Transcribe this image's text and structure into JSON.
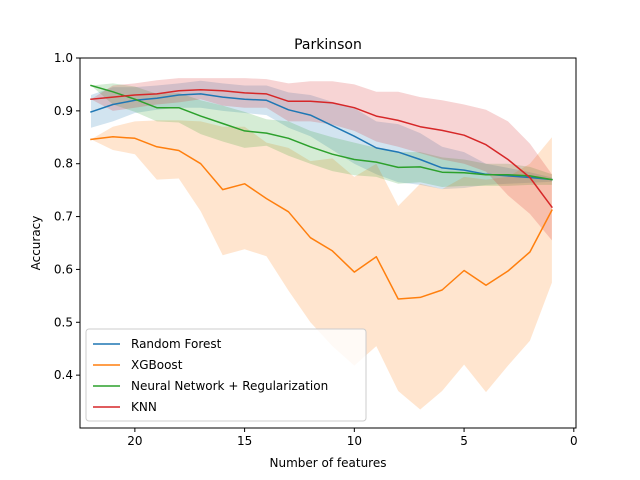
{
  "chart_data": {
    "type": "line",
    "title": "Parkinson",
    "xlabel": "Number of features",
    "ylabel": "Accuracy",
    "xlim": [
      22.5,
      -0.1
    ],
    "ylim": [
      0.3,
      1.0
    ],
    "x_inverted": true,
    "xticks": [
      20,
      15,
      10,
      5,
      0
    ],
    "yticks": [
      0.4,
      0.5,
      0.6,
      0.7,
      0.8,
      0.9,
      1.0
    ],
    "x": [
      22,
      21,
      20,
      19,
      18,
      17,
      16,
      15,
      14,
      13,
      12,
      11,
      10,
      9,
      8,
      7,
      6,
      5,
      4,
      3,
      2,
      1
    ],
    "legend_position": "lower-left",
    "grid": false,
    "series": [
      {
        "name": "Random Forest",
        "color": "#1f77b4",
        "values": [
          0.898,
          0.912,
          0.92,
          0.924,
          0.93,
          0.932,
          0.926,
          0.922,
          0.92,
          0.902,
          0.892,
          0.872,
          0.852,
          0.83,
          0.822,
          0.808,
          0.792,
          0.788,
          0.78,
          0.777,
          0.774,
          0.77
        ],
        "lower": [
          0.868,
          0.88,
          0.896,
          0.902,
          0.906,
          0.906,
          0.9,
          0.896,
          0.892,
          0.868,
          0.852,
          0.826,
          0.8,
          0.78,
          0.765,
          0.76,
          0.752,
          0.754,
          0.76,
          0.762,
          0.764,
          0.766
        ],
        "upper": [
          0.93,
          0.945,
          0.945,
          0.948,
          0.952,
          0.957,
          0.952,
          0.948,
          0.948,
          0.935,
          0.93,
          0.917,
          0.905,
          0.88,
          0.875,
          0.858,
          0.832,
          0.822,
          0.8,
          0.792,
          0.784,
          0.774
        ]
      },
      {
        "name": "XGBoost",
        "color": "#ff7f0e",
        "values": [
          0.846,
          0.851,
          0.848,
          0.832,
          0.825,
          0.8,
          0.751,
          0.762,
          0.734,
          0.709,
          0.66,
          0.635,
          0.595,
          0.624,
          0.544,
          0.547,
          0.561,
          0.598,
          0.57,
          0.597,
          0.633,
          0.712
        ],
        "lower": [
          0.846,
          0.826,
          0.818,
          0.77,
          0.772,
          0.71,
          0.627,
          0.638,
          0.625,
          0.56,
          0.5,
          0.455,
          0.418,
          0.455,
          0.37,
          0.335,
          0.37,
          0.42,
          0.368,
          0.418,
          0.465,
          0.575
        ],
        "upper": [
          0.846,
          0.87,
          0.88,
          0.882,
          0.882,
          0.88,
          0.87,
          0.87,
          0.84,
          0.83,
          0.805,
          0.81,
          0.775,
          0.8,
          0.72,
          0.762,
          0.752,
          0.775,
          0.77,
          0.775,
          0.8,
          0.85
        ]
      },
      {
        "name": "Neural Network + Regularization",
        "color": "#2ca02c",
        "values": [
          0.948,
          0.936,
          0.922,
          0.906,
          0.906,
          0.89,
          0.876,
          0.862,
          0.858,
          0.848,
          0.832,
          0.818,
          0.808,
          0.803,
          0.793,
          0.794,
          0.784,
          0.783,
          0.779,
          0.779,
          0.777,
          0.77
        ],
        "lower": [
          0.948,
          0.912,
          0.898,
          0.88,
          0.878,
          0.856,
          0.842,
          0.83,
          0.834,
          0.815,
          0.8,
          0.786,
          0.778,
          0.775,
          0.762,
          0.765,
          0.756,
          0.758,
          0.758,
          0.758,
          0.76,
          0.76
        ],
        "upper": [
          0.948,
          0.952,
          0.946,
          0.932,
          0.934,
          0.92,
          0.91,
          0.898,
          0.884,
          0.88,
          0.862,
          0.85,
          0.84,
          0.83,
          0.822,
          0.822,
          0.812,
          0.808,
          0.8,
          0.8,
          0.794,
          0.78
        ]
      },
      {
        "name": "KNN",
        "color": "#d62728",
        "values": [
          0.922,
          0.926,
          0.93,
          0.932,
          0.938,
          0.94,
          0.938,
          0.934,
          0.932,
          0.918,
          0.918,
          0.915,
          0.906,
          0.89,
          0.882,
          0.87,
          0.863,
          0.854,
          0.836,
          0.808,
          0.774,
          0.718
        ],
        "lower": [
          0.922,
          0.9,
          0.906,
          0.912,
          0.916,
          0.922,
          0.91,
          0.906,
          0.906,
          0.88,
          0.88,
          0.874,
          0.862,
          0.842,
          0.832,
          0.82,
          0.808,
          0.8,
          0.785,
          0.74,
          0.705,
          0.655
        ],
        "upper": [
          0.922,
          0.948,
          0.952,
          0.958,
          0.962,
          0.962,
          0.962,
          0.962,
          0.96,
          0.952,
          0.956,
          0.956,
          0.95,
          0.936,
          0.936,
          0.926,
          0.92,
          0.912,
          0.902,
          0.88,
          0.838,
          0.78
        ]
      }
    ]
  }
}
